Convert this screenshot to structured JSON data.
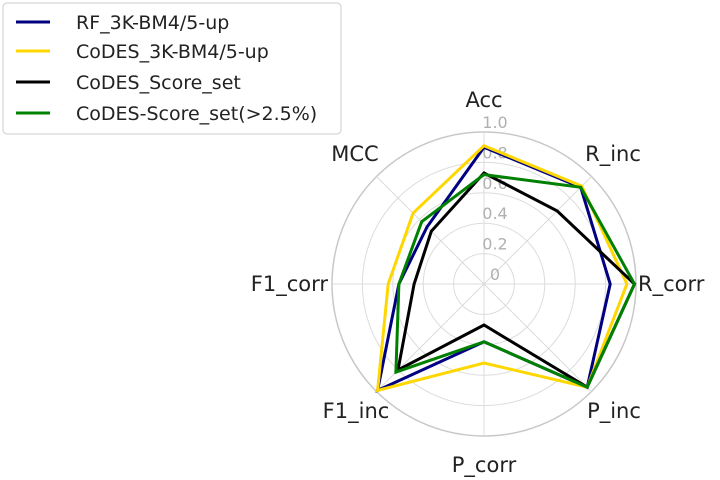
{
  "chart_data": {
    "type": "radar",
    "categories": [
      "Acc",
      "R_inc",
      "R_corr",
      "P_inc",
      "P_corr",
      "F1_inc",
      "F1_corr",
      "MCC"
    ],
    "rticks": [
      "0",
      "0.2",
      "0.4",
      "0.6",
      "0.8",
      "1.0"
    ],
    "rlim": [
      0,
      1.0
    ],
    "grid": true,
    "legend_position": "top-left",
    "series": [
      {
        "name": "RF_3K-BM4/5-up",
        "color": "#000080",
        "values": [
          0.9,
          0.9,
          0.83,
          0.96,
          0.38,
          0.99,
          0.56,
          0.53
        ]
      },
      {
        "name": "CoDES_3K-BM4/5-up",
        "color": "#FFD700",
        "values": [
          0.91,
          0.91,
          0.94,
          0.96,
          0.52,
          0.99,
          0.63,
          0.66
        ]
      },
      {
        "name": "CoDES_Score_set",
        "color": "#000000",
        "values": [
          0.73,
          0.68,
          0.99,
          0.96,
          0.27,
          0.8,
          0.46,
          0.49
        ]
      },
      {
        "name": "CoDES-Score_set(>2.5%)",
        "color": "#008000",
        "values": [
          0.72,
          0.9,
          0.99,
          0.96,
          0.38,
          0.82,
          0.56,
          0.58
        ]
      }
    ]
  }
}
